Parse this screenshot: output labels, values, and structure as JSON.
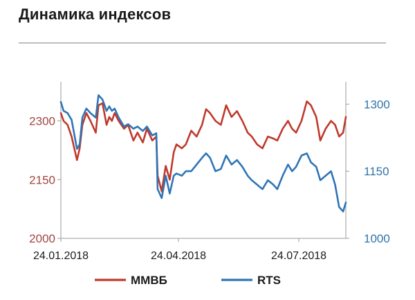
{
  "header": {
    "title": "Динамика индексов"
  },
  "chart_data": {
    "type": "line",
    "title": "Динамика индексов",
    "x_ticks": [
      "24.01.2018",
      "24.04.2018",
      "24.07.2018"
    ],
    "x_range": [
      "2018-01-24",
      "2018-08-24"
    ],
    "y_left": {
      "ticks": [
        2000,
        2150,
        2300
      ],
      "range": [
        2000,
        2400
      ]
    },
    "y_right": {
      "ticks": [
        1000,
        1150,
        1300
      ],
      "range": [
        1000,
        1350
      ]
    },
    "legend_position": "bottom",
    "grid": false,
    "series": [
      {
        "name": "ММВБ",
        "axis": "left",
        "color": "#c0392b",
        "x": [
          "2018-01-24",
          "2018-01-26",
          "2018-01-29",
          "2018-02-01",
          "2018-02-05",
          "2018-02-07",
          "2018-02-09",
          "2018-02-12",
          "2018-02-15",
          "2018-02-19",
          "2018-02-21",
          "2018-02-24",
          "2018-02-27",
          "2018-03-01",
          "2018-03-03",
          "2018-03-05",
          "2018-03-08",
          "2018-03-12",
          "2018-03-15",
          "2018-03-19",
          "2018-03-22",
          "2018-03-26",
          "2018-03-29",
          "2018-04-02",
          "2018-04-05",
          "2018-04-06",
          "2018-04-09",
          "2018-04-12",
          "2018-04-15",
          "2018-04-18",
          "2018-04-20",
          "2018-04-24",
          "2018-04-27",
          "2018-05-01",
          "2018-05-05",
          "2018-05-09",
          "2018-05-12",
          "2018-05-15",
          "2018-05-19",
          "2018-05-23",
          "2018-05-27",
          "2018-05-31",
          "2018-06-04",
          "2018-06-08",
          "2018-06-12",
          "2018-06-15",
          "2018-06-19",
          "2018-06-23",
          "2018-06-27",
          "2018-07-01",
          "2018-07-04",
          "2018-07-08",
          "2018-07-12",
          "2018-07-15",
          "2018-07-18",
          "2018-07-22",
          "2018-07-26",
          "2018-07-29",
          "2018-08-02",
          "2018-08-05",
          "2018-08-09",
          "2018-08-13",
          "2018-08-16",
          "2018-08-19",
          "2018-08-22",
          "2018-08-24"
        ],
        "values": [
          2320,
          2300,
          2290,
          2260,
          2200,
          2230,
          2290,
          2320,
          2300,
          2270,
          2340,
          2345,
          2290,
          2310,
          2300,
          2320,
          2300,
          2280,
          2290,
          2250,
          2270,
          2245,
          2280,
          2250,
          2260,
          2160,
          2120,
          2185,
          2150,
          2220,
          2240,
          2230,
          2240,
          2275,
          2260,
          2290,
          2330,
          2320,
          2300,
          2290,
          2340,
          2310,
          2325,
          2300,
          2270,
          2260,
          2240,
          2230,
          2260,
          2255,
          2250,
          2280,
          2300,
          2280,
          2270,
          2300,
          2350,
          2340,
          2310,
          2250,
          2280,
          2300,
          2290,
          2260,
          2270,
          2310
        ]
      },
      {
        "name": "RTS",
        "axis": "right",
        "color": "#2e75b6",
        "x": [
          "2018-01-24",
          "2018-01-26",
          "2018-01-29",
          "2018-02-01",
          "2018-02-05",
          "2018-02-07",
          "2018-02-09",
          "2018-02-12",
          "2018-02-15",
          "2018-02-19",
          "2018-02-21",
          "2018-02-24",
          "2018-02-27",
          "2018-03-01",
          "2018-03-03",
          "2018-03-05",
          "2018-03-08",
          "2018-03-12",
          "2018-03-15",
          "2018-03-19",
          "2018-03-22",
          "2018-03-26",
          "2018-03-29",
          "2018-04-02",
          "2018-04-05",
          "2018-04-06",
          "2018-04-09",
          "2018-04-12",
          "2018-04-15",
          "2018-04-18",
          "2018-04-20",
          "2018-04-24",
          "2018-04-27",
          "2018-05-01",
          "2018-05-05",
          "2018-05-09",
          "2018-05-12",
          "2018-05-15",
          "2018-05-19",
          "2018-05-23",
          "2018-05-27",
          "2018-05-31",
          "2018-06-04",
          "2018-06-08",
          "2018-06-12",
          "2018-06-15",
          "2018-06-19",
          "2018-06-23",
          "2018-06-27",
          "2018-07-01",
          "2018-07-04",
          "2018-07-08",
          "2018-07-12",
          "2018-07-15",
          "2018-07-18",
          "2018-07-22",
          "2018-07-26",
          "2018-07-29",
          "2018-08-02",
          "2018-08-05",
          "2018-08-09",
          "2018-08-13",
          "2018-08-16",
          "2018-08-19",
          "2018-08-22",
          "2018-08-24"
        ],
        "values": [
          1305,
          1285,
          1280,
          1265,
          1200,
          1210,
          1270,
          1290,
          1280,
          1270,
          1320,
          1310,
          1285,
          1295,
          1285,
          1290,
          1270,
          1250,
          1255,
          1245,
          1250,
          1240,
          1250,
          1230,
          1235,
          1110,
          1090,
          1140,
          1100,
          1140,
          1145,
          1140,
          1150,
          1150,
          1165,
          1180,
          1190,
          1180,
          1150,
          1155,
          1185,
          1165,
          1175,
          1160,
          1140,
          1130,
          1120,
          1110,
          1130,
          1120,
          1110,
          1140,
          1165,
          1150,
          1160,
          1185,
          1190,
          1170,
          1160,
          1130,
          1140,
          1150,
          1120,
          1070,
          1060,
          1080
        ]
      }
    ]
  }
}
